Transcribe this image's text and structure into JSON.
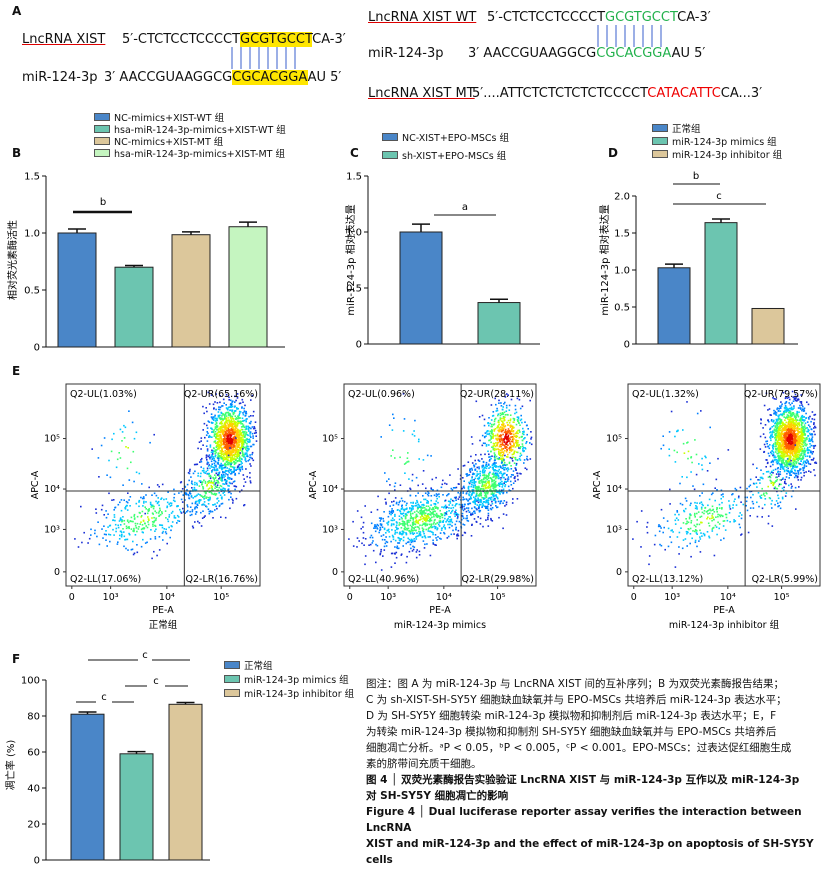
{
  "panel_a": {
    "letter": "A",
    "left": {
      "lnc_name": "LncRNA XIST",
      "lnc_prefix": "5′-CTCTCCTCCCCT",
      "lnc_hl": "GCGTGCCT",
      "lnc_suffix": "CA-3′",
      "mir_name": "miR-124-3p",
      "mir_prefix": "3′ AACCGUAAGGCG",
      "mir_hl": "CGCACGGA",
      "mir_suffix": "AU 5′"
    },
    "right": {
      "wt_name": "LncRNA XIST WT",
      "wt_prefix": "5′-CTCTCCTCCCCT",
      "wt_green": "GCGTGCCT",
      "wt_suffix": "CA-3′",
      "mir_name": "miR-124-3p",
      "mir_prefix": "3′ AACCGUAAGGCG",
      "mir_green": "CGCACGGA",
      "mir_suffix": "AU 5′",
      "mt_name": "LncRNA XIST MT",
      "mt_prefix": "5′....ATTCTCTCTCTCTCCCCT",
      "mt_red": "CATACATTC",
      "mt_suffix": "CA...3′"
    }
  },
  "panel_b": {
    "letter": "B",
    "ylabel": "相对荧光素酶活性",
    "legend": [
      {
        "label": "NC-mimics+XIST-WT 组",
        "color": "#4a86c8"
      },
      {
        "label": "hsa-miR-124-3p-mimics+XIST-WT 组",
        "color": "#6cc5b0"
      },
      {
        "label": "NC-mimics+XIST-MT 组",
        "color": "#dcc79b"
      },
      {
        "label": "hsa-miR-124-3p-mimics+XIST-MT 组",
        "color": "#c5f5c0"
      }
    ],
    "sig": "b"
  },
  "panel_c": {
    "letter": "C",
    "ylabel": "miR-124-3p 相对表达量",
    "legend": [
      {
        "label": "NC-XIST+EPO-MSCs 组",
        "color": "#4a86c8"
      },
      {
        "label": "sh-XIST+EPO-MSCs 组",
        "color": "#6cc5b0"
      }
    ],
    "sig": "a"
  },
  "panel_d": {
    "letter": "D",
    "ylabel": "miR-124-3p 相对表达量",
    "legend": [
      {
        "label": "正常组",
        "color": "#4a86c8"
      },
      {
        "label": "miR-124-3p mimics 组",
        "color": "#6cc5b0"
      },
      {
        "label": "miR-124-3p inhibitor 组",
        "color": "#dcc79b"
      }
    ],
    "sig1": "b",
    "sig2": "c"
  },
  "panel_e": {
    "letter": "E",
    "plots": [
      {
        "title": "正常组",
        "ul": "Q2-UL(1.03%)",
        "ur": "Q2-UR(65.16%)",
        "ll": "Q2-LL(17.06%)",
        "lr": "Q2-LR(16.76%)"
      },
      {
        "title": "miR-124-3p mimics",
        "ul": "Q2-UL(0.96%)",
        "ur": "Q2-UR(28.11%)",
        "ll": "Q2-LL(40.96%)",
        "lr": "Q2-LR(29.98%)"
      },
      {
        "title": "miR-124-3p inhibitor 组",
        "ul": "Q2-UL(1.32%)",
        "ur": "Q2-UR(79.57%)",
        "ll": "Q2-LL(13.12%)",
        "lr": "Q2-LR(5.99%)"
      }
    ],
    "xlabel": "PE-A",
    "ylabel": "APC-A"
  },
  "panel_f": {
    "letter": "F",
    "ylabel": "凋亡率 (%)",
    "legend": [
      {
        "label": "正常组",
        "color": "#4a86c8"
      },
      {
        "label": "miR-124-3p mimics 组",
        "color": "#6cc5b0"
      },
      {
        "label": "miR-124-3p inhibitor 组",
        "color": "#dcc79b"
      }
    ],
    "sig": "c"
  },
  "caption": {
    "note_lines": [
      "图注：图 A 为 miR-124-3p 与 LncRNA XIST 间的互补序列；B 为双荧光素酶报告结果；",
      "C 为 sh-XIST-SH-SY5Y 细胞缺血缺氧并与 EPO-MSCs 共培养后 miR-124-3p 表达水平；",
      "D 为 SH-SY5Y 细胞转染 miR-124-3p 模拟物和抑制剂后 miR-124-3p 表达水平；E，F",
      "为转染 miR-124-3p 模拟物和抑制剂 SH-SY5Y 细胞缺血缺氧并与 EPO-MSCs 共培养后",
      "细胞凋亡分析。ᵃP < 0.05，ᵇP < 0.005，ᶜP < 0.001。EPO-MSCs：过表达促红细胞生成",
      "素的脐带间充质干细胞。"
    ],
    "title_cn_1": "图 4 │ 双荧光素酶报告实验验证 LncRNA XIST 与 miR-124-3p 互作以及 miR-124-3p",
    "title_cn_2": "对 SH-SY5Y 细胞凋亡的影响",
    "title_en_1": "Figure 4  │  Dual luciferase reporter assay verifies the interaction between LncRNA",
    "title_en_2": "XIST and miR-124-3p and the effect of miR-124-3p on apoptosis of SH-SY5Y cells"
  },
  "chart_data": [
    {
      "type": "bar",
      "id": "B",
      "categories": [
        "NC-mimics+XIST-WT 组",
        "hsa-miR-124-3p-mimics+XIST-WT 组",
        "NC-mimics+XIST-MT 组",
        "hsa-miR-124-3p-mimics+XIST-MT 组"
      ],
      "values": [
        1.0,
        0.7,
        0.985,
        1.055
      ],
      "errors": [
        0.035,
        0.015,
        0.025,
        0.04
      ],
      "colors": [
        "#4a86c8",
        "#6cc5b0",
        "#dcc79b",
        "#c5f5c0"
      ],
      "ylabel": "相对荧光素酶活性",
      "ylim": [
        0,
        1.5
      ],
      "yticks": [
        "0",
        "0.5",
        "1.0",
        "1.5"
      ]
    },
    {
      "type": "bar",
      "id": "C",
      "categories": [
        "NC-XIST+EPO-MSCs 组",
        "sh-XIST+EPO-MSCs 组"
      ],
      "values": [
        1.0,
        0.37
      ],
      "errors": [
        0.07,
        0.03
      ],
      "colors": [
        "#4a86c8",
        "#6cc5b0"
      ],
      "ylabel": "miR-124-3p 相对表达量",
      "ylim": [
        0,
        1.5
      ],
      "yticks": [
        "0",
        "0.5",
        "1.0",
        "1.5"
      ]
    },
    {
      "type": "bar",
      "id": "D",
      "categories": [
        "正常组",
        "miR-124-3p mimics 组",
        "miR-124-3p inhibitor 组"
      ],
      "values": [
        1.03,
        1.64,
        0.48
      ],
      "errors": [
        0.05,
        0.05,
        0.0
      ],
      "colors": [
        "#4a86c8",
        "#6cc5b0",
        "#dcc79b"
      ],
      "ylabel": "miR-124-3p 相对表达量",
      "ylim": [
        0,
        2.0
      ],
      "yticks": [
        "0",
        "0.5",
        "1.0",
        "1.5",
        "2.0"
      ]
    },
    {
      "type": "bar",
      "id": "F",
      "categories": [
        "正常组",
        "miR-124-3p mimics 组",
        "miR-124-3p inhibitor 组"
      ],
      "values": [
        81,
        59,
        86.5
      ],
      "errors": [
        1.2,
        1.2,
        1.0
      ],
      "colors": [
        "#4a86c8",
        "#6cc5b0",
        "#dcc79b"
      ],
      "ylabel": "凋亡率 (%)",
      "ylim": [
        0,
        100
      ],
      "yticks": [
        "0",
        "20",
        "40",
        "60",
        "80",
        "100"
      ]
    },
    {
      "type": "scatter",
      "id": "E",
      "xlabel": "PE-A",
      "ylabel": "APC-A",
      "xticks": [
        "0",
        "10³",
        "10⁴",
        "10⁵"
      ],
      "yticks": [
        "0",
        "10³",
        "10⁴",
        "10⁵"
      ],
      "quadrants_percent": [
        {
          "ul": 1.03,
          "ur": 65.16,
          "ll": 17.06,
          "lr": 16.76
        },
        {
          "ul": 0.96,
          "ur": 28.11,
          "ll": 40.96,
          "lr": 29.98
        },
        {
          "ul": 1.32,
          "ur": 79.57,
          "ll": 13.12,
          "lr": 5.99
        }
      ]
    }
  ]
}
